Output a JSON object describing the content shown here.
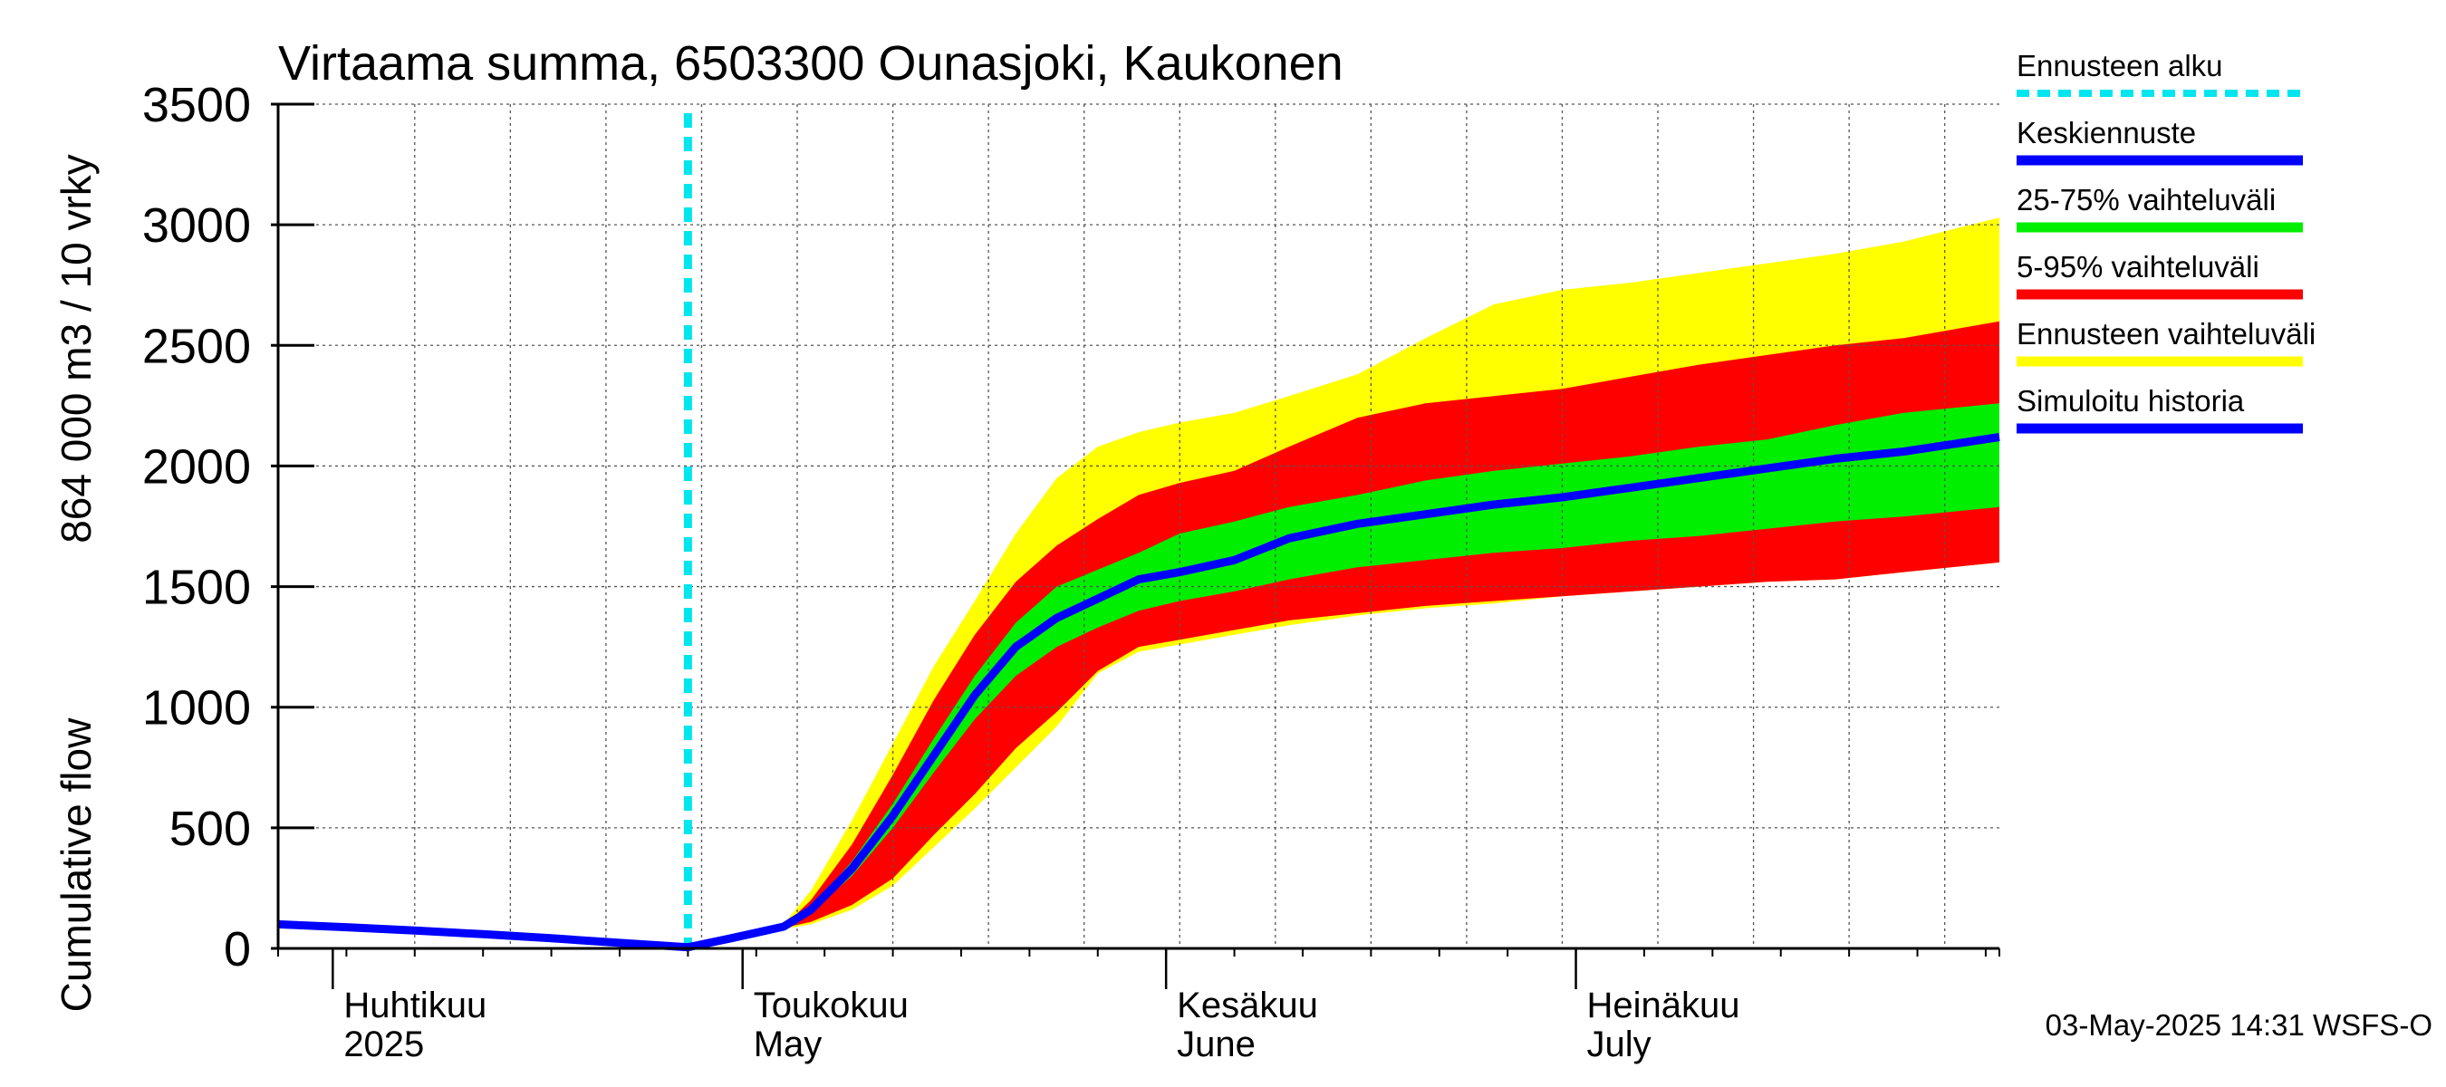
{
  "chart_data": {
    "type": "area",
    "title": "Virtaama summa, 6503300 Ounasjoki, Kaukonen",
    "ylabel_line1": "Cumulative flow",
    "ylabel_line2": "864 000 m3 / 10 vrky",
    "ylim": [
      0,
      3500
    ],
    "yticks": [
      0,
      500,
      1000,
      1500,
      2000,
      2500,
      3000,
      3500
    ],
    "xlim": [
      "2025-03-28",
      "2025-08-01"
    ],
    "month_labels": [
      {
        "date": "2025-04-01",
        "line1": "Huhtikuu",
        "line2": "2025"
      },
      {
        "date": "2025-05-01",
        "line1": "Toukokuu",
        "line2": "May"
      },
      {
        "date": "2025-06-01",
        "line1": "Kesäkuu",
        "line2": "June"
      },
      {
        "date": "2025-07-01",
        "line1": "Heinäkuu",
        "line2": "July"
      }
    ],
    "forecast_start": "2025-04-27",
    "grid": true,
    "legend_position": "right",
    "colors": {
      "forecast_start": "#00e5ee",
      "mean_forecast": "#0000ff",
      "band_25_75": "#00ee00",
      "band_5_95": "#ff0000",
      "band_total": "#ffff00",
      "simulated_history": "#0000ff"
    },
    "legend": [
      {
        "key": "forecast_start",
        "label": "Ennusteen alku",
        "style": "dashed"
      },
      {
        "key": "mean_forecast",
        "label": "Keskiennuste",
        "style": "solid"
      },
      {
        "key": "band_25_75",
        "label": "25-75% vaihteluväli",
        "style": "solid"
      },
      {
        "key": "band_5_95",
        "label": "5-95% vaihteluväli",
        "style": "solid"
      },
      {
        "key": "band_total",
        "label": "Ennusteen vaihteluväli",
        "style": "solid"
      },
      {
        "key": "simulated_history",
        "label": "Simuloitu historia",
        "style": "solid"
      }
    ],
    "history": {
      "x": [
        "2025-03-28",
        "2025-04-02",
        "2025-04-07",
        "2025-04-12",
        "2025-04-17",
        "2025-04-22",
        "2025-04-27"
      ],
      "y": [
        100,
        88,
        74,
        59,
        42,
        23,
        5
      ]
    },
    "forecast": {
      "x": [
        "2025-04-27",
        "2025-04-30",
        "2025-05-02",
        "2025-05-04",
        "2025-05-06",
        "2025-05-09",
        "2025-05-12",
        "2025-05-15",
        "2025-05-18",
        "2025-05-21",
        "2025-05-24",
        "2025-05-27",
        "2025-05-30",
        "2025-06-02",
        "2025-06-06",
        "2025-06-10",
        "2025-06-15",
        "2025-06-20",
        "2025-06-25",
        "2025-06-30",
        "2025-07-05",
        "2025-07-10",
        "2025-07-15",
        "2025-07-20",
        "2025-07-25",
        "2025-08-01"
      ],
      "mean": [
        5,
        40,
        65,
        90,
        160,
        330,
        550,
        800,
        1050,
        1250,
        1370,
        1450,
        1530,
        1560,
        1610,
        1700,
        1760,
        1800,
        1840,
        1870,
        1910,
        1950,
        1990,
        2030,
        2060,
        2120
      ],
      "p25": [
        5,
        40,
        65,
        90,
        150,
        300,
        500,
        730,
        950,
        1130,
        1250,
        1330,
        1400,
        1440,
        1480,
        1530,
        1580,
        1610,
        1640,
        1660,
        1690,
        1710,
        1740,
        1770,
        1790,
        1830
      ],
      "p75": [
        5,
        40,
        65,
        90,
        170,
        360,
        600,
        870,
        1130,
        1350,
        1500,
        1570,
        1640,
        1720,
        1770,
        1830,
        1880,
        1940,
        1980,
        2010,
        2040,
        2080,
        2110,
        2170,
        2220,
        2260
      ],
      "p5": [
        5,
        40,
        65,
        85,
        110,
        180,
        290,
        470,
        640,
        830,
        980,
        1150,
        1250,
        1280,
        1320,
        1360,
        1390,
        1420,
        1440,
        1460,
        1480,
        1500,
        1520,
        1530,
        1560,
        1600
      ],
      "p95": [
        5,
        40,
        65,
        90,
        200,
        430,
        720,
        1030,
        1300,
        1520,
        1670,
        1780,
        1880,
        1930,
        1980,
        2080,
        2200,
        2260,
        2290,
        2320,
        2370,
        2420,
        2460,
        2500,
        2530,
        2600
      ],
      "min": [
        5,
        40,
        65,
        80,
        100,
        160,
        260,
        420,
        580,
        750,
        920,
        1140,
        1230,
        1260,
        1300,
        1340,
        1380,
        1410,
        1430,
        1460,
        1480,
        1500,
        1520,
        1530,
        1560,
        1600
      ],
      "max": [
        5,
        40,
        65,
        100,
        240,
        530,
        850,
        1170,
        1440,
        1720,
        1950,
        2080,
        2140,
        2180,
        2220,
        2290,
        2380,
        2530,
        2670,
        2730,
        2760,
        2800,
        2840,
        2880,
        2930,
        3030
      ]
    }
  },
  "footer": {
    "timestamp": "03-May-2025 14:31 WSFS-O"
  }
}
